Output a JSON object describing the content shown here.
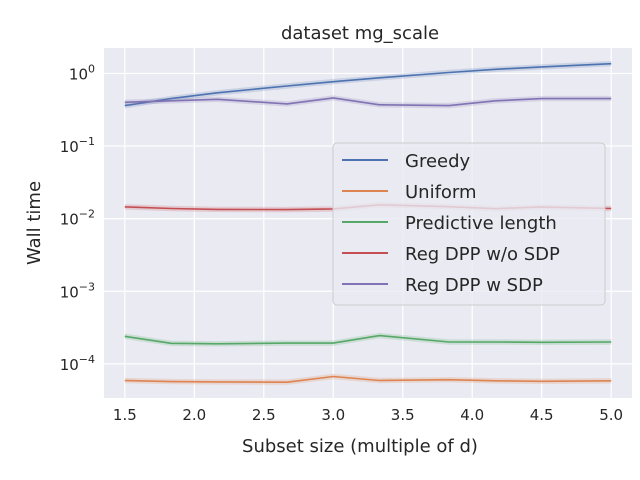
{
  "chart_data": {
    "type": "line",
    "title": "dataset mg_scale",
    "xlabel": "Subset size (multiple of d)",
    "ylabel": "Wall time",
    "yscale": "log",
    "xlim": [
      1.35,
      5.15
    ],
    "ylim_log10": [
      -4.47,
      0.35
    ],
    "x": [
      1.5,
      1.833,
      2.167,
      2.667,
      3.0,
      3.333,
      3.833,
      4.167,
      4.5,
      5.0
    ],
    "x_ticks": [
      1.5,
      2.0,
      2.5,
      3.0,
      3.5,
      4.0,
      4.5,
      5.0
    ],
    "x_tick_labels": [
      "1.5",
      "2.0",
      "2.5",
      "3.0",
      "3.5",
      "4.0",
      "4.5",
      "5.0"
    ],
    "y_ticks": [
      {
        "base": "10",
        "exp": "0",
        "value": 1
      },
      {
        "base": "10",
        "exp": "−1",
        "value": 0.1
      },
      {
        "base": "10",
        "exp": "−2",
        "value": 0.01
      },
      {
        "base": "10",
        "exp": "−3",
        "value": 0.001
      },
      {
        "base": "10",
        "exp": "−4",
        "value": 0.0001
      }
    ],
    "legend_position": "center-right",
    "series": [
      {
        "name": "Greedy",
        "color": "#4c72b0",
        "values": [
          0.36,
          0.45,
          0.54,
          0.67,
          0.77,
          0.87,
          1.03,
          1.14,
          1.23,
          1.36
        ]
      },
      {
        "name": "Uniform",
        "color": "#dd8452",
        "values": [
          5.9e-05,
          5.7e-05,
          5.65e-05,
          5.6e-05,
          6.7e-05,
          5.9e-05,
          6.05e-05,
          5.85e-05,
          5.75e-05,
          5.85e-05
        ]
      },
      {
        "name": "Predictive length",
        "color": "#55a868",
        "values": [
          0.00024,
          0.000192,
          0.000189,
          0.000193,
          0.000193,
          0.000245,
          0.0002,
          0.0002,
          0.000198,
          0.0002
        ]
      },
      {
        "name": "Reg DPP w/o SDP",
        "color": "#c44e52",
        "values": [
          0.0145,
          0.0138,
          0.0134,
          0.0133,
          0.0136,
          0.0155,
          0.0146,
          0.0137,
          0.0145,
          0.0138
        ]
      },
      {
        "name": "Reg DPP w SDP",
        "color": "#8172b3",
        "values": [
          0.4,
          0.42,
          0.44,
          0.38,
          0.46,
          0.37,
          0.36,
          0.42,
          0.45,
          0.45
        ]
      }
    ]
  }
}
